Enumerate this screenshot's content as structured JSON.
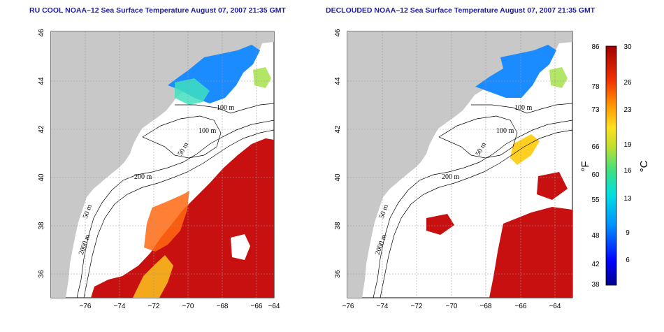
{
  "panels": [
    {
      "title": "RU COOL NOAA–12 Sea Surface Temperature August 07, 2007 21:35 GMT",
      "variant": "cloudy"
    },
    {
      "title": "DECLOUDED NOAA–12 Sea Surface Temperature August 07, 2007 21:35 GMT",
      "variant": "declouded"
    }
  ],
  "axes": {
    "x_ticks": [
      "−76",
      "−74",
      "−72",
      "−70",
      "−68",
      "−66",
      "−64"
    ],
    "y_ticks": [
      "36",
      "38",
      "40",
      "42",
      "44",
      "46"
    ],
    "lon_range": [
      -77,
      -63
    ],
    "lat_range": [
      35,
      46
    ]
  },
  "contour_labels": [
    "100 m",
    "100 m",
    "50 m",
    "200 m",
    "50 m",
    "2000 m"
  ],
  "colorbar": {
    "fahrenheit_label": "°F",
    "celsius_label": "°C",
    "fahrenheit_ticks": [
      "86",
      "78",
      "73",
      "66",
      "60",
      "55",
      "48",
      "42",
      "38"
    ],
    "celsius_ticks": [
      "30",
      "26",
      "23",
      "19",
      "16",
      "13",
      "9",
      "6"
    ],
    "colors": [
      "#00008b",
      "#0000ff",
      "#0080ff",
      "#00c0ff",
      "#00e0c0",
      "#40e080",
      "#a0e040",
      "#f0e020",
      "#ffb000",
      "#ff6000",
      "#e02000",
      "#a00000"
    ]
  },
  "colors": {
    "land": "#c8c8c8",
    "ocean": "#ffffff",
    "title": "#1b1bb0",
    "warm": "#c81010",
    "warm2": "#ff6a10",
    "cool": "#1a8cff"
  }
}
